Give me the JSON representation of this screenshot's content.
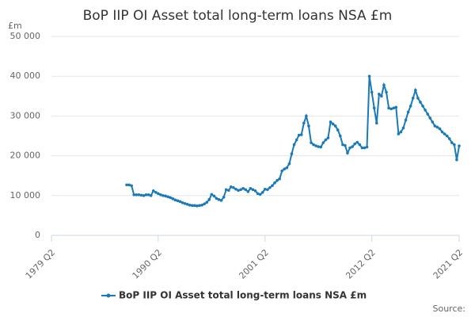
{
  "chart_data": {
    "type": "line",
    "title": "BoP IIP OI Asset total long-term loans NSA £m",
    "y_label": "£m",
    "source": "Source:",
    "categories": [
      "1979 Q2",
      null,
      null,
      null,
      null,
      null,
      null,
      null,
      null,
      null,
      null,
      null,
      null,
      null,
      null,
      null,
      null,
      null,
      null,
      null,
      null,
      null,
      null,
      null,
      null,
      null,
      null,
      null,
      null,
      null,
      null,
      null,
      null,
      null,
      null,
      null,
      null,
      null,
      null,
      null,
      null,
      null,
      null,
      null,
      "1990 Q2",
      null,
      null,
      null,
      null,
      null,
      null,
      null,
      null,
      null,
      null,
      null,
      null,
      null,
      null,
      null,
      null,
      null,
      null,
      null,
      null,
      null,
      null,
      null,
      null,
      null,
      null,
      null,
      null,
      null,
      null,
      null,
      null,
      null,
      null,
      null,
      null,
      null,
      null,
      null,
      null,
      null,
      null,
      null,
      "2001 Q2",
      null,
      null,
      null,
      null,
      null,
      null,
      null,
      null,
      null,
      null,
      null,
      null,
      null,
      null,
      null,
      null,
      null,
      null,
      null,
      null,
      null,
      null,
      null,
      null,
      null,
      null,
      null,
      null,
      null,
      null,
      null,
      null,
      null,
      null,
      null,
      null,
      null,
      null,
      null,
      null,
      null,
      null,
      null,
      "2012 Q2",
      null,
      null,
      null,
      null,
      null,
      null,
      null,
      null,
      null,
      null,
      null,
      null,
      null,
      null,
      null,
      null,
      null,
      null,
      null,
      null,
      null,
      null,
      null,
      null,
      null,
      null,
      null,
      null,
      null,
      null,
      null,
      null,
      null,
      null,
      null,
      "2021 Q2"
    ],
    "series": [
      {
        "name": "BoP IIP OI Asset total long-term loans NSA £m",
        "color": "#1a7ab8",
        "values": [
          null,
          null,
          null,
          null,
          null,
          null,
          null,
          null,
          null,
          null,
          null,
          null,
          null,
          null,
          null,
          null,
          null,
          null,
          null,
          null,
          null,
          null,
          null,
          null,
          null,
          null,
          null,
          null,
          null,
          null,
          null,
          12700,
          12700,
          12500,
          10200,
          10200,
          10200,
          10100,
          10000,
          10200,
          10200,
          10000,
          11200,
          10800,
          10500,
          10200,
          10000,
          9900,
          9700,
          9500,
          9200,
          8900,
          8700,
          8500,
          8200,
          8000,
          7800,
          7600,
          7500,
          7500,
          7400,
          7500,
          7600,
          7900,
          8300,
          9000,
          10300,
          9900,
          9300,
          9000,
          8800,
          9600,
          11500,
          11300,
          12200,
          12000,
          11600,
          11300,
          11500,
          11800,
          11500,
          11000,
          11800,
          11500,
          11200,
          10500,
          10300,
          10800,
          11600,
          11500,
          12000,
          12500,
          13200,
          13800,
          14200,
          16200,
          16700,
          17000,
          18000,
          20500,
          22800,
          24000,
          25200,
          25300,
          28200,
          30000,
          27500,
          23300,
          22800,
          22500,
          22300,
          22200,
          23300,
          24000,
          24500,
          28500,
          28000,
          27500,
          26500,
          25000,
          22800,
          22600,
          20700,
          22000,
          22300,
          23000,
          23400,
          22800,
          22000,
          22000,
          22200,
          40000,
          36000,
          32000,
          28200,
          35500,
          35000,
          37800,
          36000,
          32000,
          31800,
          32000,
          32200,
          25500,
          26000,
          27000,
          29000,
          31000,
          32500,
          34500,
          36500,
          34500,
          33500,
          32500,
          31500,
          30500,
          29500,
          28500,
          27500,
          27200,
          26800,
          26000,
          25500,
          25000,
          24300,
          23300,
          22800,
          19000,
          22500
        ]
      }
    ],
    "ylim": [
      0,
      50000
    ],
    "yticks": [
      0,
      {
        "value": 10000,
        "label": "10 000"
      },
      {
        "value": 20000,
        "label": "20 000"
      },
      {
        "value": 30000,
        "label": "30 000"
      },
      {
        "value": 40000,
        "label": "40 000"
      },
      {
        "value": 50000,
        "label": "50 000"
      }
    ],
    "grid": true,
    "markers": true
  }
}
